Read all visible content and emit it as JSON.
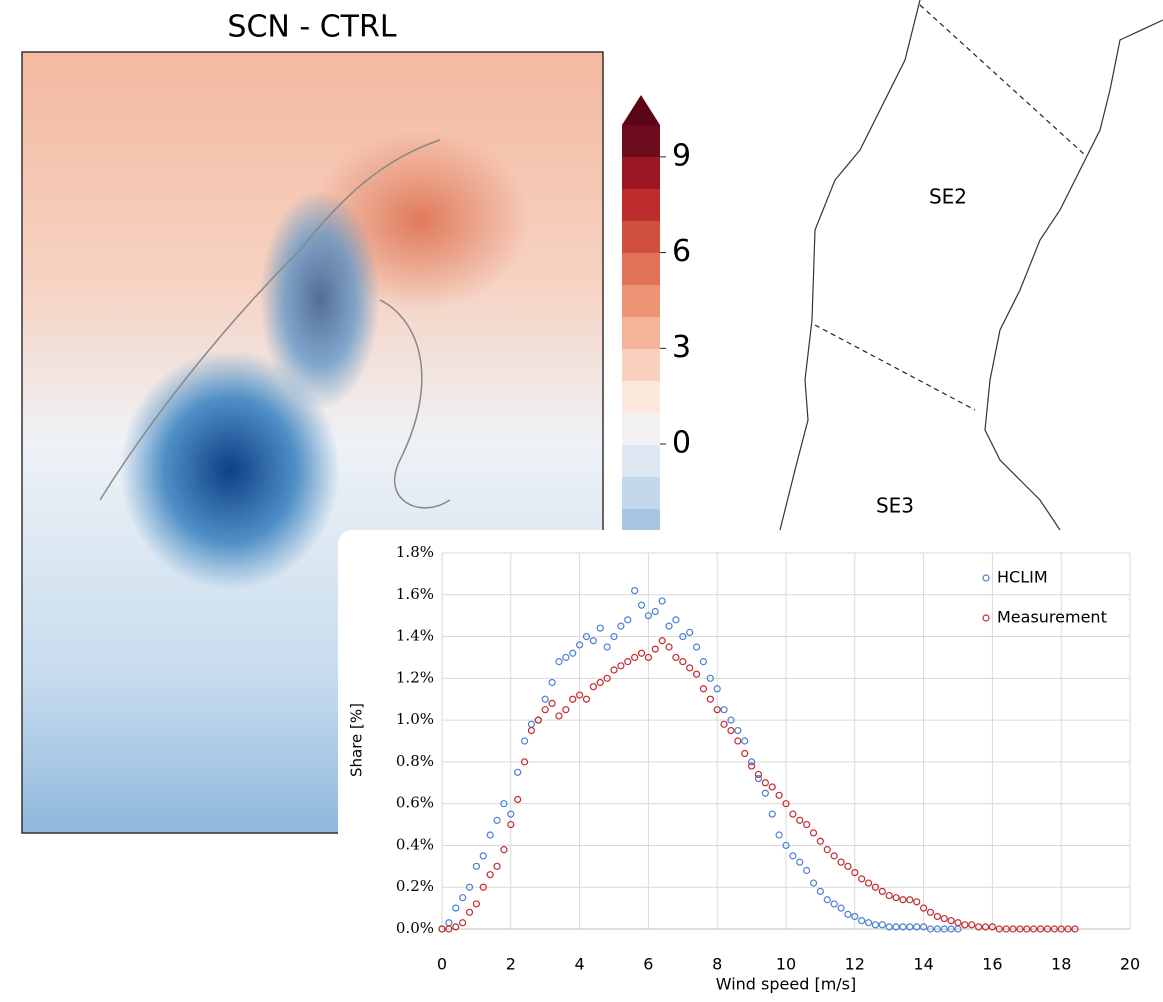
{
  "map_panel": {
    "title": "SCN - CTRL",
    "colorbar": {
      "ticks": [
        0,
        3,
        6,
        9
      ]
    }
  },
  "region_map": {
    "labels": [
      "SE2",
      "SE3"
    ]
  },
  "chart_data": {
    "type": "scatter",
    "xlabel": "Wind speed [m/s]",
    "ylabel": "Share [%]",
    "xlim": [
      0,
      20
    ],
    "xticks": [
      0,
      2,
      4,
      6,
      8,
      10,
      12,
      14,
      16,
      18,
      20
    ],
    "ylim": [
      0,
      1.8
    ],
    "yticks": [
      {
        "value": 0,
        "label": "0.0%"
      },
      {
        "value": 0.2,
        "label": "0.2%"
      },
      {
        "value": 0.4,
        "label": "0.4%"
      },
      {
        "value": 0.6,
        "label": "0.6%"
      },
      {
        "value": 0.8,
        "label": "0.8%"
      },
      {
        "value": 1.0,
        "label": "1.0%"
      },
      {
        "value": 1.2,
        "label": "1.2%"
      },
      {
        "value": 1.4,
        "label": "1.4%"
      },
      {
        "value": 1.6,
        "label": "1.6%"
      },
      {
        "value": 1.8,
        "label": "1.8%"
      }
    ],
    "grid": true,
    "legend": "upper right",
    "series": [
      {
        "name": "HCLIM",
        "color": "#4a7fd4",
        "x": [
          0,
          0.2,
          0.4,
          0.6,
          0.8,
          1.0,
          1.2,
          1.4,
          1.6,
          1.8,
          2.0,
          2.2,
          2.4,
          2.6,
          2.8,
          3.0,
          3.2,
          3.4,
          3.6,
          3.8,
          4.0,
          4.2,
          4.4,
          4.6,
          4.8,
          5.0,
          5.2,
          5.4,
          5.6,
          5.8,
          6.0,
          6.2,
          6.4,
          6.6,
          6.8,
          7.0,
          7.2,
          7.4,
          7.6,
          7.8,
          8.0,
          8.2,
          8.4,
          8.6,
          8.8,
          9.0,
          9.2,
          9.4,
          9.6,
          9.8,
          10.0,
          10.2,
          10.4,
          10.6,
          10.8,
          11.0,
          11.2,
          11.4,
          11.6,
          11.8,
          12.0,
          12.2,
          12.4,
          12.6,
          12.8,
          13.0,
          13.2,
          13.4,
          13.6,
          13.8,
          14.0,
          14.2,
          14.4,
          14.6,
          14.8,
          15.0
        ],
        "values": [
          0,
          0.03,
          0.1,
          0.15,
          0.2,
          0.3,
          0.35,
          0.45,
          0.52,
          0.6,
          0.55,
          0.75,
          0.9,
          0.98,
          1.0,
          1.1,
          1.18,
          1.28,
          1.3,
          1.32,
          1.36,
          1.4,
          1.38,
          1.44,
          1.35,
          1.4,
          1.45,
          1.48,
          1.62,
          1.55,
          1.5,
          1.52,
          1.57,
          1.45,
          1.48,
          1.4,
          1.42,
          1.35,
          1.28,
          1.2,
          1.15,
          1.05,
          1.0,
          0.95,
          0.9,
          0.8,
          0.72,
          0.65,
          0.55,
          0.45,
          0.4,
          0.35,
          0.32,
          0.28,
          0.22,
          0.18,
          0.14,
          0.12,
          0.1,
          0.07,
          0.06,
          0.04,
          0.03,
          0.02,
          0.02,
          0.01,
          0.01,
          0.01,
          0.01,
          0.01,
          0.01,
          0,
          0,
          0,
          0,
          0
        ]
      },
      {
        "name": "Measurement",
        "color": "#c42a2f",
        "x": [
          0,
          0.2,
          0.4,
          0.6,
          0.8,
          1.0,
          1.2,
          1.4,
          1.6,
          1.8,
          2.0,
          2.2,
          2.4,
          2.6,
          2.8,
          3.0,
          3.2,
          3.4,
          3.6,
          3.8,
          4.0,
          4.2,
          4.4,
          4.6,
          4.8,
          5.0,
          5.2,
          5.4,
          5.6,
          5.8,
          6.0,
          6.2,
          6.4,
          6.6,
          6.8,
          7.0,
          7.2,
          7.4,
          7.6,
          7.8,
          8.0,
          8.2,
          8.4,
          8.6,
          8.8,
          9.0,
          9.2,
          9.4,
          9.6,
          9.8,
          10.0,
          10.2,
          10.4,
          10.6,
          10.8,
          11.0,
          11.2,
          11.4,
          11.6,
          11.8,
          12.0,
          12.2,
          12.4,
          12.6,
          12.8,
          13.0,
          13.2,
          13.4,
          13.6,
          13.8,
          14.0,
          14.2,
          14.4,
          14.6,
          14.8,
          15.0,
          15.2,
          15.4,
          15.6,
          15.8,
          16.0,
          16.2,
          16.4,
          16.6,
          16.8,
          17.0,
          17.2,
          17.4,
          17.6,
          17.8,
          18.0,
          18.2,
          18.4
        ],
        "values": [
          0,
          0,
          0.01,
          0.03,
          0.08,
          0.12,
          0.2,
          0.26,
          0.3,
          0.38,
          0.5,
          0.62,
          0.8,
          0.95,
          1.0,
          1.05,
          1.08,
          1.02,
          1.05,
          1.1,
          1.12,
          1.1,
          1.16,
          1.18,
          1.2,
          1.24,
          1.26,
          1.28,
          1.3,
          1.32,
          1.3,
          1.34,
          1.38,
          1.35,
          1.3,
          1.28,
          1.25,
          1.22,
          1.15,
          1.1,
          1.05,
          0.98,
          0.95,
          0.9,
          0.84,
          0.78,
          0.74,
          0.7,
          0.68,
          0.64,
          0.6,
          0.55,
          0.52,
          0.5,
          0.46,
          0.42,
          0.38,
          0.35,
          0.32,
          0.3,
          0.27,
          0.24,
          0.22,
          0.2,
          0.18,
          0.16,
          0.15,
          0.14,
          0.14,
          0.13,
          0.1,
          0.08,
          0.06,
          0.05,
          0.04,
          0.03,
          0.02,
          0.02,
          0.01,
          0.01,
          0.01,
          0,
          0,
          0,
          0,
          0,
          0,
          0,
          0,
          0,
          0,
          0,
          0
        ]
      }
    ]
  }
}
